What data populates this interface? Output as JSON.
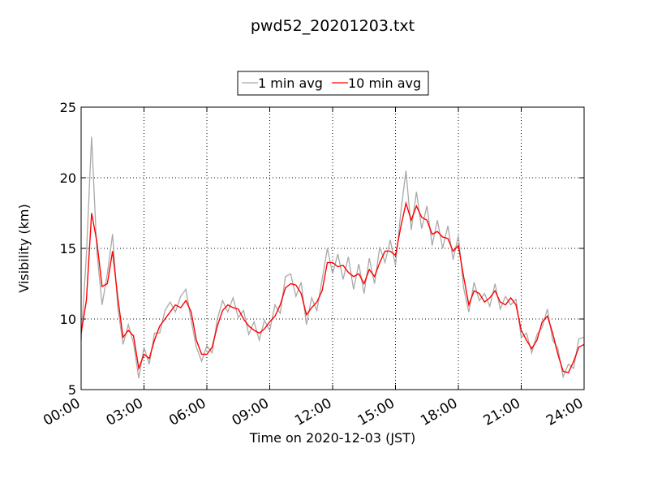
{
  "chart_data": {
    "type": "line",
    "title": "pwd52_20201203.txt",
    "xlabel": "Time on 2020-12-03 (JST)",
    "ylabel": "Visibility (km)",
    "x": [
      0,
      0.25,
      0.5,
      0.75,
      1,
      1.25,
      1.5,
      1.75,
      2,
      2.25,
      2.5,
      2.75,
      3,
      3.25,
      3.5,
      3.75,
      4,
      4.25,
      4.5,
      4.75,
      5,
      5.25,
      5.5,
      5.75,
      6,
      6.25,
      6.5,
      6.75,
      7,
      7.25,
      7.5,
      7.75,
      8,
      8.25,
      8.5,
      8.75,
      9,
      9.25,
      9.5,
      9.75,
      10,
      10.25,
      10.5,
      10.75,
      11,
      11.25,
      11.5,
      11.75,
      12,
      12.25,
      12.5,
      12.75,
      13,
      13.25,
      13.5,
      13.75,
      14,
      14.25,
      14.5,
      14.75,
      15,
      15.25,
      15.5,
      15.75,
      16,
      16.25,
      16.5,
      16.75,
      17,
      17.25,
      17.5,
      17.75,
      18,
      18.25,
      18.5,
      18.75,
      19,
      19.25,
      19.5,
      19.75,
      20,
      20.25,
      20.5,
      20.75,
      21,
      21.25,
      21.5,
      21.75,
      22,
      22.25,
      22.5,
      22.75,
      23,
      23.25,
      23.5,
      23.75,
      24
    ],
    "series": [
      {
        "name": "1 min avg",
        "color": "#a9a9a9",
        "values": [
          8.5,
          14.5,
          22.9,
          14.8,
          11.0,
          13.2,
          16.0,
          10.8,
          8.2,
          9.6,
          8.3,
          5.8,
          8.0,
          6.8,
          9.0,
          9.0,
          10.6,
          11.2,
          10.5,
          11.6,
          12.1,
          9.9,
          8.0,
          7.0,
          8.1,
          7.6,
          10.0,
          11.3,
          10.5,
          11.5,
          10.1,
          10.6,
          8.9,
          9.8,
          8.5,
          9.9,
          9.2,
          11.0,
          10.4,
          13.0,
          13.2,
          11.6,
          12.6,
          9.6,
          11.5,
          10.6,
          12.8,
          15.0,
          13.2,
          14.6,
          12.8,
          14.4,
          12.1,
          13.9,
          11.8,
          14.3,
          12.5,
          15.1,
          14.0,
          15.6,
          13.8,
          17.5,
          20.5,
          16.3,
          19.0,
          16.4,
          18.0,
          15.2,
          17.0,
          15.0,
          16.6,
          14.2,
          15.9,
          12.2,
          10.5,
          12.6,
          11.3,
          11.8,
          10.9,
          12.5,
          10.7,
          11.6,
          11.0,
          11.4,
          8.7,
          9.0,
          7.6,
          8.9,
          9.4,
          10.7,
          8.5,
          7.9,
          5.9,
          6.8,
          6.5,
          8.6,
          8.7
        ]
      },
      {
        "name": "10 min avg",
        "color": "#ff0000",
        "values": [
          9.0,
          11.3,
          17.5,
          15.5,
          12.3,
          12.5,
          14.8,
          11.5,
          8.7,
          9.2,
          8.8,
          6.5,
          7.5,
          7.2,
          8.5,
          9.5,
          10.0,
          10.5,
          11.0,
          10.8,
          11.3,
          10.5,
          8.5,
          7.5,
          7.5,
          8.0,
          9.5,
          10.6,
          11.0,
          10.8,
          10.7,
          10.0,
          9.5,
          9.2,
          9.0,
          9.3,
          9.8,
          10.2,
          11.0,
          12.2,
          12.5,
          12.4,
          11.8,
          10.3,
          10.8,
          11.2,
          12.0,
          14.0,
          14.0,
          13.7,
          13.8,
          13.3,
          13.0,
          13.2,
          12.5,
          13.5,
          13.0,
          14.0,
          14.8,
          14.8,
          14.5,
          16.5,
          18.2,
          17.0,
          18.0,
          17.2,
          17.0,
          16.0,
          16.2,
          15.8,
          15.7,
          14.8,
          15.2,
          13.0,
          11.0,
          12.0,
          11.8,
          11.2,
          11.5,
          12.0,
          11.2,
          11.0,
          11.5,
          11.0,
          9.2,
          8.5,
          7.9,
          8.5,
          9.8,
          10.2,
          9.0,
          7.5,
          6.3,
          6.2,
          7.0,
          8.0,
          8.2
        ]
      }
    ],
    "xlim": [
      0,
      24
    ],
    "xticks": [
      {
        "value": 0,
        "label": "00:00"
      },
      {
        "value": 3,
        "label": "03:00"
      },
      {
        "value": 6,
        "label": "06:00"
      },
      {
        "value": 9,
        "label": "09:00"
      },
      {
        "value": 12,
        "label": "12:00"
      },
      {
        "value": 15,
        "label": "15:00"
      },
      {
        "value": 18,
        "label": "18:00"
      },
      {
        "value": 21,
        "label": "21:00"
      },
      {
        "value": 24,
        "label": "24:00"
      }
    ],
    "ylim": [
      5,
      25
    ],
    "yticks": [
      5,
      10,
      15,
      20,
      25
    ],
    "grid": true,
    "legend": "top"
  }
}
